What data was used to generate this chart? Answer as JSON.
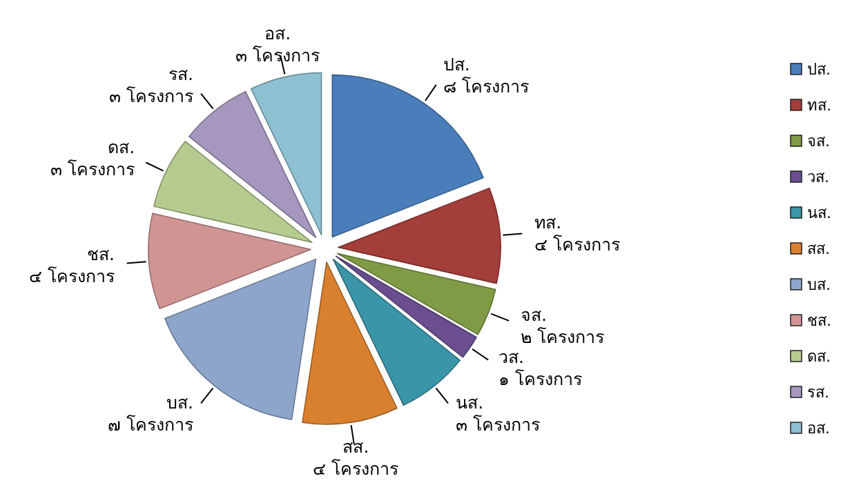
{
  "chart_data": {
    "type": "pie",
    "categories": [
      "ปส.",
      "ทส.",
      "จส.",
      "วส.",
      "นส.",
      "สส.",
      "บส.",
      "ชส.",
      "ดส.",
      "รส.",
      "อส."
    ],
    "values": [
      8,
      4,
      2,
      1,
      3,
      4,
      7,
      4,
      3,
      3,
      3
    ],
    "value_labels": [
      "๘ โครงการ",
      "๔ โครงการ",
      "๒ โครงการ",
      "๑ โครงการ",
      "๓ โครงการ",
      "๔ โครงการ",
      "๗ โครงการ",
      "๔ โครงการ",
      "๓ โครงการ",
      "๓ โครงการ",
      "๓ โครงการ"
    ],
    "colors": [
      "#4a7ebb",
      "#a43e3b",
      "#7f9b45",
      "#6a4e8f",
      "#3a95a8",
      "#d9802f",
      "#8ea5cb",
      "#d09593",
      "#b6cc8f",
      "#a597be",
      "#8dc0d0"
    ],
    "legend": "right"
  }
}
